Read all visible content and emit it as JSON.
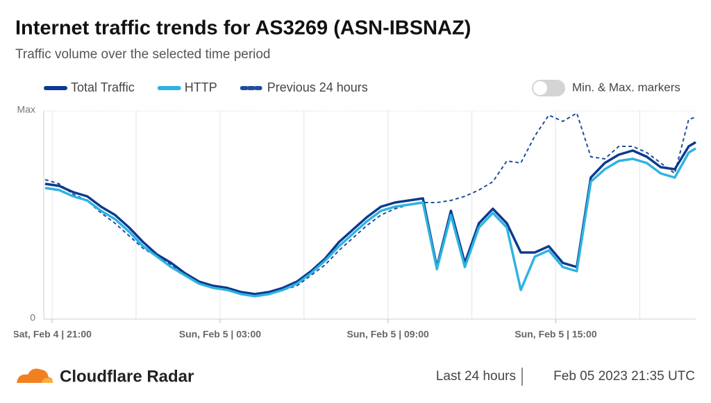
{
  "chart_data": {
    "type": "line",
    "title": "Internet traffic trends for AS3269 (ASN-IBSNAZ)",
    "subtitle": "Traffic volume over the selected time period",
    "toggle_label": "Min. & Max. markers",
    "x": [
      -0.25,
      0.25,
      0.75,
      1.25,
      1.75,
      2.25,
      2.75,
      3.25,
      3.75,
      4.25,
      4.75,
      5.25,
      5.75,
      6.25,
      6.75,
      7.25,
      7.75,
      8.25,
      8.75,
      9.25,
      9.75,
      10.25,
      10.75,
      11.25,
      11.75,
      12.25,
      12.75,
      13.25,
      13.75,
      14.25,
      14.75,
      15.25,
      15.75,
      16.25,
      16.75,
      17.25,
      17.75,
      18.25,
      18.75,
      19.25,
      19.75,
      20.25,
      20.75,
      21.25,
      21.75,
      22.25,
      22.75,
      23
    ],
    "xlim": [
      -0.3,
      23
    ],
    "xticks": [
      {
        "value": 0,
        "label": "Sat, Feb 4 | 21:00"
      },
      {
        "value": 6,
        "label": "Sun, Feb 5 | 03:00"
      },
      {
        "value": 12,
        "label": "Sun, Feb 5 | 09:00"
      },
      {
        "value": 18,
        "label": "Sun, Feb 5 | 15:00"
      }
    ],
    "ylim": [
      0,
      100
    ],
    "yticks": [
      0,
      {
        "value": 100,
        "label": "Max"
      }
    ],
    "grid": true,
    "series": [
      {
        "name": "Total Traffic",
        "color": "#0b3a8f",
        "dashed": false,
        "values": [
          65,
          64,
          61,
          59,
          54,
          50,
          44,
          37,
          31,
          27,
          22,
          18,
          16,
          15,
          13,
          12,
          13,
          15,
          18,
          23,
          29,
          37,
          43,
          49,
          54,
          56,
          57,
          58,
          25,
          52,
          27,
          46,
          53,
          46,
          32,
          32,
          35,
          27,
          25,
          68,
          75,
          79,
          81,
          78,
          73,
          72,
          83,
          85
        ]
      },
      {
        "name": "HTTP",
        "color": "#2fb3e0",
        "dashed": false,
        "values": [
          63,
          62,
          59,
          57,
          52,
          48,
          42,
          35,
          30,
          25,
          21,
          17,
          15,
          14,
          12,
          11,
          12,
          14,
          17,
          22,
          28,
          35,
          41,
          47,
          52,
          54,
          55,
          56,
          24,
          50,
          25,
          44,
          51,
          44,
          14,
          30,
          33,
          25,
          23,
          66,
          72,
          76,
          77,
          75,
          70,
          68,
          80,
          82
        ]
      },
      {
        "name": "Previous 24 hours",
        "color": "#1d4f9e",
        "dashed": true,
        "values": [
          67,
          65,
          60,
          57,
          51,
          46,
          40,
          34,
          30,
          26,
          22,
          18,
          15,
          14,
          12,
          11,
          12,
          14,
          16,
          21,
          26,
          33,
          39,
          45,
          50,
          53,
          55,
          56,
          56,
          57,
          59,
          62,
          66,
          76,
          75,
          88,
          98,
          95,
          99,
          78,
          77,
          83,
          83,
          80,
          75,
          70,
          96,
          97
        ]
      }
    ],
    "brand": "Cloudflare Radar",
    "range_label": "Last 24 hours",
    "timestamp": "Feb 05 2023 21:35 UTC"
  }
}
